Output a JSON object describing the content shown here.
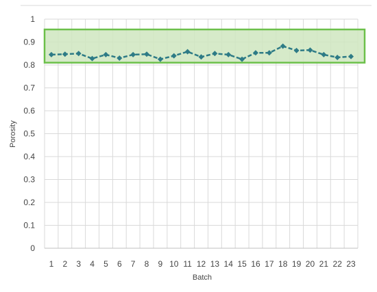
{
  "chart_data": {
    "type": "line",
    "xlabel": "Batch",
    "ylabel": "Porosity",
    "x": [
      1,
      2,
      3,
      4,
      5,
      6,
      7,
      8,
      9,
      10,
      11,
      12,
      13,
      14,
      15,
      16,
      17,
      18,
      19,
      20,
      21,
      22,
      23
    ],
    "series": [
      {
        "values": [
          0.845,
          0.847,
          0.85,
          0.828,
          0.845,
          0.83,
          0.845,
          0.847,
          0.825,
          0.84,
          0.858,
          0.835,
          0.85,
          0.845,
          0.825,
          0.853,
          0.853,
          0.882,
          0.863,
          0.865,
          0.845,
          0.833,
          0.837
        ],
        "color": "#2E7B86"
      }
    ],
    "ylim": [
      0,
      1
    ],
    "yticks": [
      0,
      0.1,
      0.2,
      0.3,
      0.4,
      0.5,
      0.6,
      0.7,
      0.8,
      0.9,
      1
    ],
    "band": {
      "from": 0.81,
      "to": 0.955,
      "fill": "#CFE6BF",
      "stroke": "#6CC04A"
    },
    "grid": true,
    "legend": "none"
  }
}
